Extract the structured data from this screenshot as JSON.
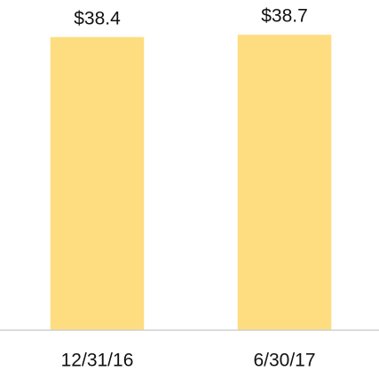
{
  "chart_data": {
    "type": "bar",
    "categories": [
      "12/31/16",
      "6/30/17"
    ],
    "values": [
      38.4,
      38.7
    ],
    "value_labels": [
      "$38.4",
      "$38.7"
    ],
    "color": "#fddd7f",
    "ylim": [
      0,
      40
    ]
  }
}
